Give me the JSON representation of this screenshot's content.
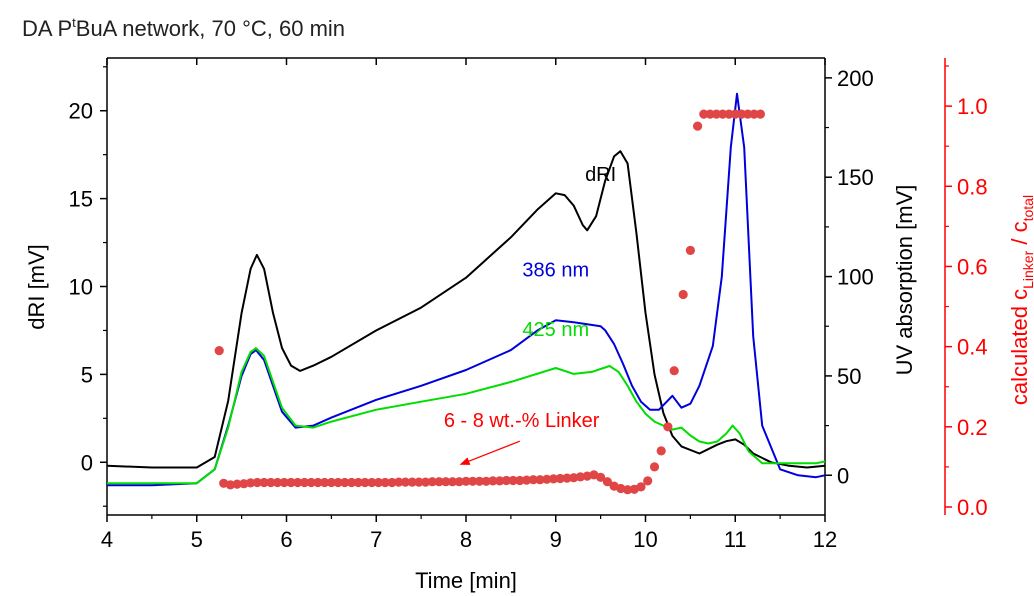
{
  "chart_data": {
    "type": "line",
    "title": "DA PᵗBuA network, 70 °C, 60 min",
    "title_parts": {
      "base": "DA P",
      "sup": "t",
      "rest": "BuA network, 70 °C, 60 min"
    },
    "xlabel": "Time [min]",
    "xlim": [
      4,
      12
    ],
    "xticks": [
      4,
      5,
      6,
      7,
      8,
      9,
      10,
      11,
      12
    ],
    "axes": {
      "left": {
        "label": "dRI [mV]",
        "ylim": [
          -3,
          23
        ],
        "ticks": [
          0,
          5,
          10,
          15,
          20
        ],
        "color": "#000000"
      },
      "right1": {
        "label": "UV absorption [mV]",
        "ylim": [
          -20,
          210
        ],
        "ticks": [
          0,
          50,
          100,
          150,
          200
        ],
        "color": "#000000"
      },
      "right2": {
        "label_parts": {
          "pre": "calculated c",
          "sub1": "Linker",
          "mid": " / c",
          "sub2": "total"
        },
        "label": "calculated cLinker / ctotal",
        "ylim": [
          -0.02,
          1.12
        ],
        "ticks": [
          0.0,
          0.2,
          0.4,
          0.6,
          0.8,
          1.0
        ],
        "tick_labels": [
          "0.0",
          "0.2",
          "0.4",
          "0.6",
          "0.8",
          "1.0"
        ],
        "color": "#ff0000"
      }
    },
    "series": [
      {
        "name": "dRI",
        "axis": "left",
        "color": "#000000",
        "x": [
          4.0,
          4.5,
          5.0,
          5.2,
          5.35,
          5.5,
          5.6,
          5.67,
          5.75,
          5.85,
          5.95,
          6.05,
          6.15,
          6.3,
          6.5,
          7.0,
          7.5,
          8.0,
          8.5,
          8.8,
          9.0,
          9.1,
          9.2,
          9.3,
          9.35,
          9.45,
          9.55,
          9.65,
          9.72,
          9.8,
          9.9,
          10.0,
          10.1,
          10.2,
          10.3,
          10.4,
          10.6,
          10.8,
          10.9,
          11.0,
          11.1,
          11.2,
          11.4,
          11.6,
          11.8,
          12.0
        ],
        "y": [
          -0.2,
          -0.3,
          -0.3,
          0.3,
          3.5,
          8.5,
          11.0,
          11.8,
          11.0,
          8.5,
          6.5,
          5.5,
          5.2,
          5.5,
          6.0,
          7.5,
          8.8,
          10.5,
          12.8,
          14.4,
          15.3,
          15.2,
          14.6,
          13.5,
          13.2,
          14.0,
          16.0,
          17.4,
          17.7,
          17.0,
          13.0,
          8.5,
          5.0,
          2.8,
          1.5,
          0.9,
          0.5,
          1.0,
          1.2,
          1.3,
          1.0,
          0.5,
          0.0,
          -0.2,
          -0.3,
          -0.2
        ]
      },
      {
        "name": "386 nm",
        "axis": "right1",
        "color": "#0000dd",
        "x": [
          4.0,
          4.5,
          5.0,
          5.2,
          5.35,
          5.5,
          5.6,
          5.66,
          5.75,
          5.85,
          5.95,
          6.1,
          6.3,
          6.5,
          7.0,
          7.5,
          8.0,
          8.5,
          8.8,
          9.0,
          9.2,
          9.35,
          9.5,
          9.55,
          9.65,
          9.75,
          9.85,
          9.95,
          10.05,
          10.15,
          10.3,
          10.4,
          10.5,
          10.6,
          10.75,
          10.85,
          10.95,
          11.02,
          11.1,
          11.2,
          11.3,
          11.5,
          11.7,
          11.9,
          12.0
        ],
        "y": [
          -5,
          -5,
          -4,
          3,
          25,
          50,
          61,
          63,
          58,
          45,
          32,
          24,
          25,
          29,
          38,
          45,
          53,
          63,
          73,
          78,
          77,
          76,
          75,
          73,
          66,
          56,
          45,
          37,
          33,
          33,
          40,
          34,
          36,
          45,
          65,
          100,
          165,
          192,
          165,
          70,
          25,
          3,
          0,
          -1,
          0
        ]
      },
      {
        "name": "425 nm",
        "axis": "right1",
        "color": "#00dd00",
        "x": [
          4.0,
          4.5,
          5.0,
          5.2,
          5.35,
          5.5,
          5.6,
          5.66,
          5.75,
          5.85,
          5.95,
          6.1,
          6.3,
          6.5,
          7.0,
          7.5,
          8.0,
          8.5,
          9.0,
          9.2,
          9.4,
          9.6,
          9.7,
          9.8,
          9.9,
          10.0,
          10.1,
          10.2,
          10.3,
          10.4,
          10.5,
          10.6,
          10.7,
          10.8,
          10.9,
          10.97,
          11.05,
          11.15,
          11.3,
          11.5,
          11.7,
          11.9,
          12.0
        ],
        "y": [
          -4,
          -4,
          -4,
          3,
          24,
          52,
          62,
          64,
          60,
          47,
          34,
          25,
          24,
          27,
          33,
          37,
          41,
          47,
          54,
          51,
          52,
          55,
          52,
          45,
          37,
          31,
          27,
          25,
          23,
          24,
          20,
          17,
          16,
          17,
          21,
          25,
          21,
          12,
          6,
          6,
          6,
          6,
          7
        ]
      },
      {
        "name": "calculated cLinker / ctotal",
        "axis": "right2",
        "color": "#e04646",
        "style": "scatter",
        "x": [
          5.25,
          5.3,
          5.375,
          5.45,
          5.525,
          5.6,
          5.675,
          5.75,
          5.825,
          5.9,
          5.975,
          6.05,
          6.125,
          6.2,
          6.275,
          6.35,
          6.425,
          6.5,
          6.575,
          6.65,
          6.725,
          6.8,
          6.875,
          6.95,
          7.025,
          7.1,
          7.175,
          7.25,
          7.325,
          7.4,
          7.475,
          7.55,
          7.625,
          7.7,
          7.775,
          7.85,
          7.925,
          8.0,
          8.075,
          8.15,
          8.225,
          8.3,
          8.375,
          8.45,
          8.525,
          8.6,
          8.675,
          8.75,
          8.825,
          8.9,
          8.975,
          9.05,
          9.125,
          9.2,
          9.275,
          9.35,
          9.425,
          9.5,
          9.575,
          9.65,
          9.725,
          9.8,
          9.875,
          9.95,
          10.025,
          10.1,
          10.175,
          10.25,
          10.32,
          10.42,
          10.5,
          10.58,
          10.65,
          10.72,
          10.79,
          10.86,
          10.93,
          11.0,
          11.07,
          11.14,
          11.21,
          11.28
        ],
        "y": [
          0.39,
          0.059,
          0.055,
          0.057,
          0.058,
          0.06,
          0.061,
          0.061,
          0.061,
          0.061,
          0.061,
          0.061,
          0.061,
          0.061,
          0.061,
          0.061,
          0.061,
          0.061,
          0.061,
          0.061,
          0.061,
          0.061,
          0.061,
          0.061,
          0.061,
          0.061,
          0.061,
          0.062,
          0.062,
          0.062,
          0.062,
          0.062,
          0.063,
          0.063,
          0.063,
          0.063,
          0.063,
          0.064,
          0.064,
          0.064,
          0.064,
          0.065,
          0.065,
          0.066,
          0.066,
          0.066,
          0.067,
          0.068,
          0.068,
          0.069,
          0.07,
          0.071,
          0.072,
          0.073,
          0.075,
          0.077,
          0.08,
          0.074,
          0.063,
          0.052,
          0.046,
          0.043,
          0.044,
          0.05,
          0.065,
          0.1,
          0.14,
          0.2,
          0.34,
          0.53,
          0.64,
          0.95,
          0.98,
          0.98,
          0.98,
          0.98,
          0.98,
          0.98,
          0.98,
          0.98,
          0.98,
          0.98
        ]
      }
    ],
    "annotations": [
      {
        "text": "dRI",
        "color": "#000000",
        "x": 9.5,
        "axis": "left",
        "y": 16.0
      },
      {
        "text": "386 nm",
        "color": "#0000dd",
        "x": 9.0,
        "axis": "right1",
        "y": 100
      },
      {
        "text": "425 nm",
        "color": "#00dd00",
        "x": 9.0,
        "axis": "right1",
        "y": 70
      },
      {
        "text": "6 - 8 wt.-% Linker",
        "color": "#ff0000",
        "x": 8.62,
        "axis": "left",
        "y": 2.0,
        "arrow_from": [
          8.6,
          1.2
        ],
        "arrow_to": [
          7.95,
          -0.1
        ]
      }
    ],
    "grid": false,
    "legend": "none"
  }
}
